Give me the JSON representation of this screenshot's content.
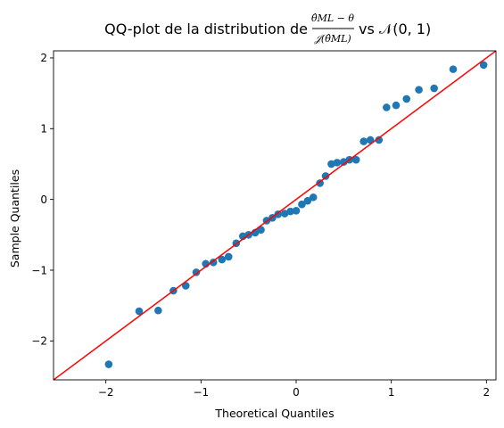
{
  "chart_data": {
    "type": "scatter",
    "title_prefix": "QQ-plot de la distribution de",
    "title_fraction_numerator": "θ̂ML − θ",
    "title_fraction_denominator": "𝒥(θ̂ML)",
    "title_suffix": "vs 𝒩(0, 1)",
    "xlabel": "Theoretical Quantiles",
    "ylabel": "Sample Quantiles",
    "xlim": [
      -2.55,
      2.1
    ],
    "ylim": [
      -2.55,
      2.1
    ],
    "xticks": [
      -2,
      -1,
      0,
      1,
      2
    ],
    "yticks": [
      -2,
      -1,
      0,
      1,
      2
    ],
    "tick_labels": [
      "−2",
      "−1",
      "0",
      "1",
      "2"
    ],
    "grid": false,
    "marker_color": "#1f77b4",
    "reference_line": {
      "type": "45-degree",
      "color": "#ff0000"
    },
    "points": [
      {
        "x": -1.97,
        "y": -2.33
      },
      {
        "x": -1.65,
        "y": -1.58
      },
      {
        "x": -1.45,
        "y": -1.57
      },
      {
        "x": -1.29,
        "y": -1.29
      },
      {
        "x": -1.16,
        "y": -1.22
      },
      {
        "x": -1.05,
        "y": -1.03
      },
      {
        "x": -0.95,
        "y": -0.91
      },
      {
        "x": -0.87,
        "y": -0.89
      },
      {
        "x": -0.78,
        "y": -0.85
      },
      {
        "x": -0.71,
        "y": -0.81
      },
      {
        "x": -0.63,
        "y": -0.62
      },
      {
        "x": -0.56,
        "y": -0.52
      },
      {
        "x": -0.5,
        "y": -0.5
      },
      {
        "x": -0.43,
        "y": -0.47
      },
      {
        "x": -0.37,
        "y": -0.43
      },
      {
        "x": -0.31,
        "y": -0.3
      },
      {
        "x": -0.25,
        "y": -0.26
      },
      {
        "x": -0.19,
        "y": -0.21
      },
      {
        "x": -0.12,
        "y": -0.2
      },
      {
        "x": -0.06,
        "y": -0.17
      },
      {
        "x": 0.0,
        "y": -0.16
      },
      {
        "x": 0.06,
        "y": -0.07
      },
      {
        "x": 0.12,
        "y": -0.02
      },
      {
        "x": 0.18,
        "y": 0.03
      },
      {
        "x": 0.25,
        "y": 0.23
      },
      {
        "x": 0.31,
        "y": 0.33
      },
      {
        "x": 0.37,
        "y": 0.5
      },
      {
        "x": 0.43,
        "y": 0.52
      },
      {
        "x": 0.5,
        "y": 0.53
      },
      {
        "x": 0.56,
        "y": 0.56
      },
      {
        "x": 0.63,
        "y": 0.56
      },
      {
        "x": 0.71,
        "y": 0.82
      },
      {
        "x": 0.78,
        "y": 0.84
      },
      {
        "x": 0.87,
        "y": 0.84
      },
      {
        "x": 0.95,
        "y": 1.3
      },
      {
        "x": 1.05,
        "y": 1.33
      },
      {
        "x": 1.16,
        "y": 1.42
      },
      {
        "x": 1.29,
        "y": 1.55
      },
      {
        "x": 1.45,
        "y": 1.57
      },
      {
        "x": 1.65,
        "y": 1.84
      },
      {
        "x": 1.97,
        "y": 1.9
      }
    ]
  }
}
